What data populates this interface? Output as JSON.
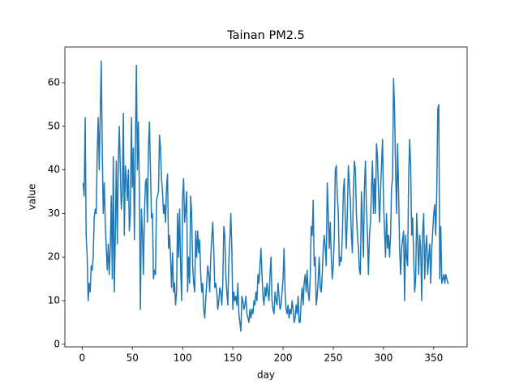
{
  "chart_data": {
    "type": "line",
    "title": "Tainan PM2.5",
    "xlabel": "day",
    "ylabel": "value",
    "x": [
      1,
      2,
      3,
      4,
      5,
      6,
      7,
      8,
      9,
      10,
      11,
      12,
      13,
      14,
      15,
      16,
      17,
      18,
      19,
      20,
      21,
      22,
      23,
      24,
      25,
      26,
      27,
      28,
      29,
      30,
      31,
      32,
      33,
      34,
      35,
      36,
      37,
      38,
      39,
      40,
      41,
      42,
      43,
      44,
      45,
      46,
      47,
      48,
      49,
      50,
      51,
      52,
      53,
      54,
      55,
      56,
      57,
      58,
      59,
      60,
      61,
      62,
      63,
      64,
      65,
      66,
      67,
      68,
      69,
      70,
      71,
      72,
      73,
      74,
      75,
      76,
      77,
      78,
      79,
      80,
      81,
      82,
      83,
      84,
      85,
      86,
      87,
      88,
      89,
      90,
      91,
      92,
      93,
      94,
      95,
      96,
      97,
      98,
      99,
      100,
      101,
      102,
      103,
      104,
      105,
      106,
      107,
      108,
      109,
      110,
      111,
      112,
      113,
      114,
      115,
      116,
      117,
      118,
      119,
      120,
      121,
      122,
      123,
      124,
      125,
      126,
      127,
      128,
      129,
      130,
      131,
      132,
      133,
      134,
      135,
      136,
      137,
      138,
      139,
      140,
      141,
      142,
      143,
      144,
      145,
      146,
      147,
      148,
      149,
      150,
      151,
      152,
      153,
      154,
      155,
      156,
      157,
      158,
      159,
      160,
      161,
      162,
      163,
      164,
      165,
      166,
      167,
      168,
      169,
      170,
      171,
      172,
      173,
      174,
      175,
      176,
      177,
      178,
      179,
      180,
      181,
      182,
      183,
      184,
      185,
      186,
      187,
      188,
      189,
      190,
      191,
      192,
      193,
      194,
      195,
      196,
      197,
      198,
      199,
      200,
      201,
      202,
      203,
      204,
      205,
      206,
      207,
      208,
      209,
      210,
      211,
      212,
      213,
      214,
      215,
      216,
      217,
      218,
      219,
      220,
      221,
      222,
      223,
      224,
      225,
      226,
      227,
      228,
      229,
      230,
      231,
      232,
      233,
      234,
      235,
      236,
      237,
      238,
      239,
      240,
      241,
      242,
      243,
      244,
      245,
      246,
      247,
      248,
      249,
      250,
      251,
      252,
      253,
      254,
      255,
      256,
      257,
      258,
      259,
      260,
      261,
      262,
      263,
      264,
      265,
      266,
      267,
      268,
      269,
      270,
      271,
      272,
      273,
      274,
      275,
      276,
      277,
      278,
      279,
      280,
      281,
      282,
      283,
      284,
      285,
      286,
      287,
      288,
      289,
      290,
      291,
      292,
      293,
      294,
      295,
      296,
      297,
      298,
      299,
      300,
      301,
      302,
      303,
      304,
      305,
      306,
      307,
      308,
      309,
      310,
      311,
      312,
      313,
      314,
      315,
      316,
      317,
      318,
      319,
      320,
      321,
      322,
      323,
      324,
      325,
      326,
      327,
      328,
      329,
      330,
      331,
      332,
      333,
      334,
      335,
      336,
      337,
      338,
      339,
      340,
      341,
      342,
      343,
      344,
      345,
      346,
      347,
      348,
      349,
      350,
      351,
      352,
      353,
      354,
      355,
      356,
      357,
      358,
      359,
      360,
      361,
      362,
      363,
      364,
      365
    ],
    "series": [
      {
        "name": "PM2.5",
        "color": "#1f77b4",
        "values": [
          37,
          34,
          52,
          25,
          20,
          10,
          14,
          12,
          18,
          17,
          20,
          29,
          31,
          30,
          44,
          52,
          40,
          52,
          65,
          45,
          30,
          37,
          28,
          22,
          17,
          23,
          16,
          22,
          34,
          15,
          43,
          12,
          25,
          42,
          23,
          42,
          50,
          40,
          31,
          35,
          53,
          25,
          41,
          38,
          33,
          40,
          26,
          30,
          52,
          36,
          45,
          24,
          46,
          64,
          40,
          51,
          35,
          8,
          31,
          26,
          16,
          30,
          37,
          38,
          28,
          45,
          51,
          40,
          29,
          30,
          15,
          17,
          16,
          33,
          34,
          35,
          48,
          45,
          38,
          35,
          30,
          32,
          28,
          36,
          39,
          22,
          25,
          20,
          13,
          21,
          12,
          14,
          9,
          12,
          30,
          20,
          31,
          18,
          10,
          34,
          38,
          28,
          31,
          35,
          12,
          20,
          14,
          34,
          30,
          18,
          14,
          12,
          26,
          20,
          26,
          21,
          24,
          16,
          12,
          14,
          8,
          6,
          10,
          14,
          18,
          16,
          12,
          20,
          24,
          28,
          22,
          13,
          14,
          12,
          8,
          10,
          13,
          12,
          9,
          14,
          27,
          25,
          16,
          12,
          9,
          19,
          24,
          30,
          22,
          8,
          12,
          10,
          11,
          9,
          14,
          7,
          5,
          3,
          11,
          10,
          8,
          9,
          11,
          7,
          6,
          5,
          8,
          6,
          8,
          7,
          10,
          9,
          12,
          10,
          16,
          14,
          18,
          22,
          16,
          11,
          9,
          13,
          11,
          14,
          12,
          10,
          16,
          20,
          10,
          8,
          7,
          12,
          10,
          9,
          14,
          11,
          8,
          9,
          12,
          15,
          22,
          12,
          8,
          7,
          9,
          6,
          8,
          7,
          10,
          8,
          5,
          6,
          9,
          7,
          11,
          5,
          5,
          10,
          13,
          9,
          14,
          16,
          12,
          17,
          12,
          10,
          15,
          27,
          25,
          33,
          18,
          20,
          9,
          11,
          15,
          20,
          13,
          12,
          16,
          22,
          25,
          22,
          18,
          37,
          30,
          22,
          28,
          20,
          15,
          18,
          25,
          40,
          41,
          34,
          30,
          18,
          20,
          19,
          25,
          35,
          38,
          28,
          22,
          30,
          41,
          37,
          33,
          25,
          21,
          35,
          42,
          40,
          30,
          25,
          22,
          17,
          16,
          35,
          28,
          20,
          36,
          42,
          31,
          25,
          16,
          25,
          28,
          35,
          42,
          30,
          38,
          30,
          46,
          43,
          35,
          28,
          35,
          41,
          47,
          33,
          26,
          20,
          30,
          22,
          25,
          20,
          25,
          36,
          38,
          61,
          54,
          40,
          30,
          46,
          35,
          22,
          16,
          22,
          24,
          26,
          10,
          25,
          20,
          18,
          38,
          47,
          41,
          25,
          29,
          20,
          12,
          15,
          30,
          24,
          16,
          25,
          22,
          10,
          26,
          30,
          15,
          22,
          25,
          16,
          20,
          23,
          14,
          22,
          26,
          30,
          32,
          25,
          35,
          54,
          55,
          15,
          27,
          14,
          15,
          16,
          14,
          16,
          15,
          14,
          14
        ]
      }
    ],
    "xlim": [
      -17.2,
      383.2
    ],
    "xticks": [
      0,
      50,
      100,
      150,
      200,
      250,
      300,
      350
    ],
    "ylim": [
      -0.6,
      68.2
    ],
    "yticks": [
      0,
      10,
      20,
      30,
      40,
      50,
      60
    ],
    "grid": false
  }
}
